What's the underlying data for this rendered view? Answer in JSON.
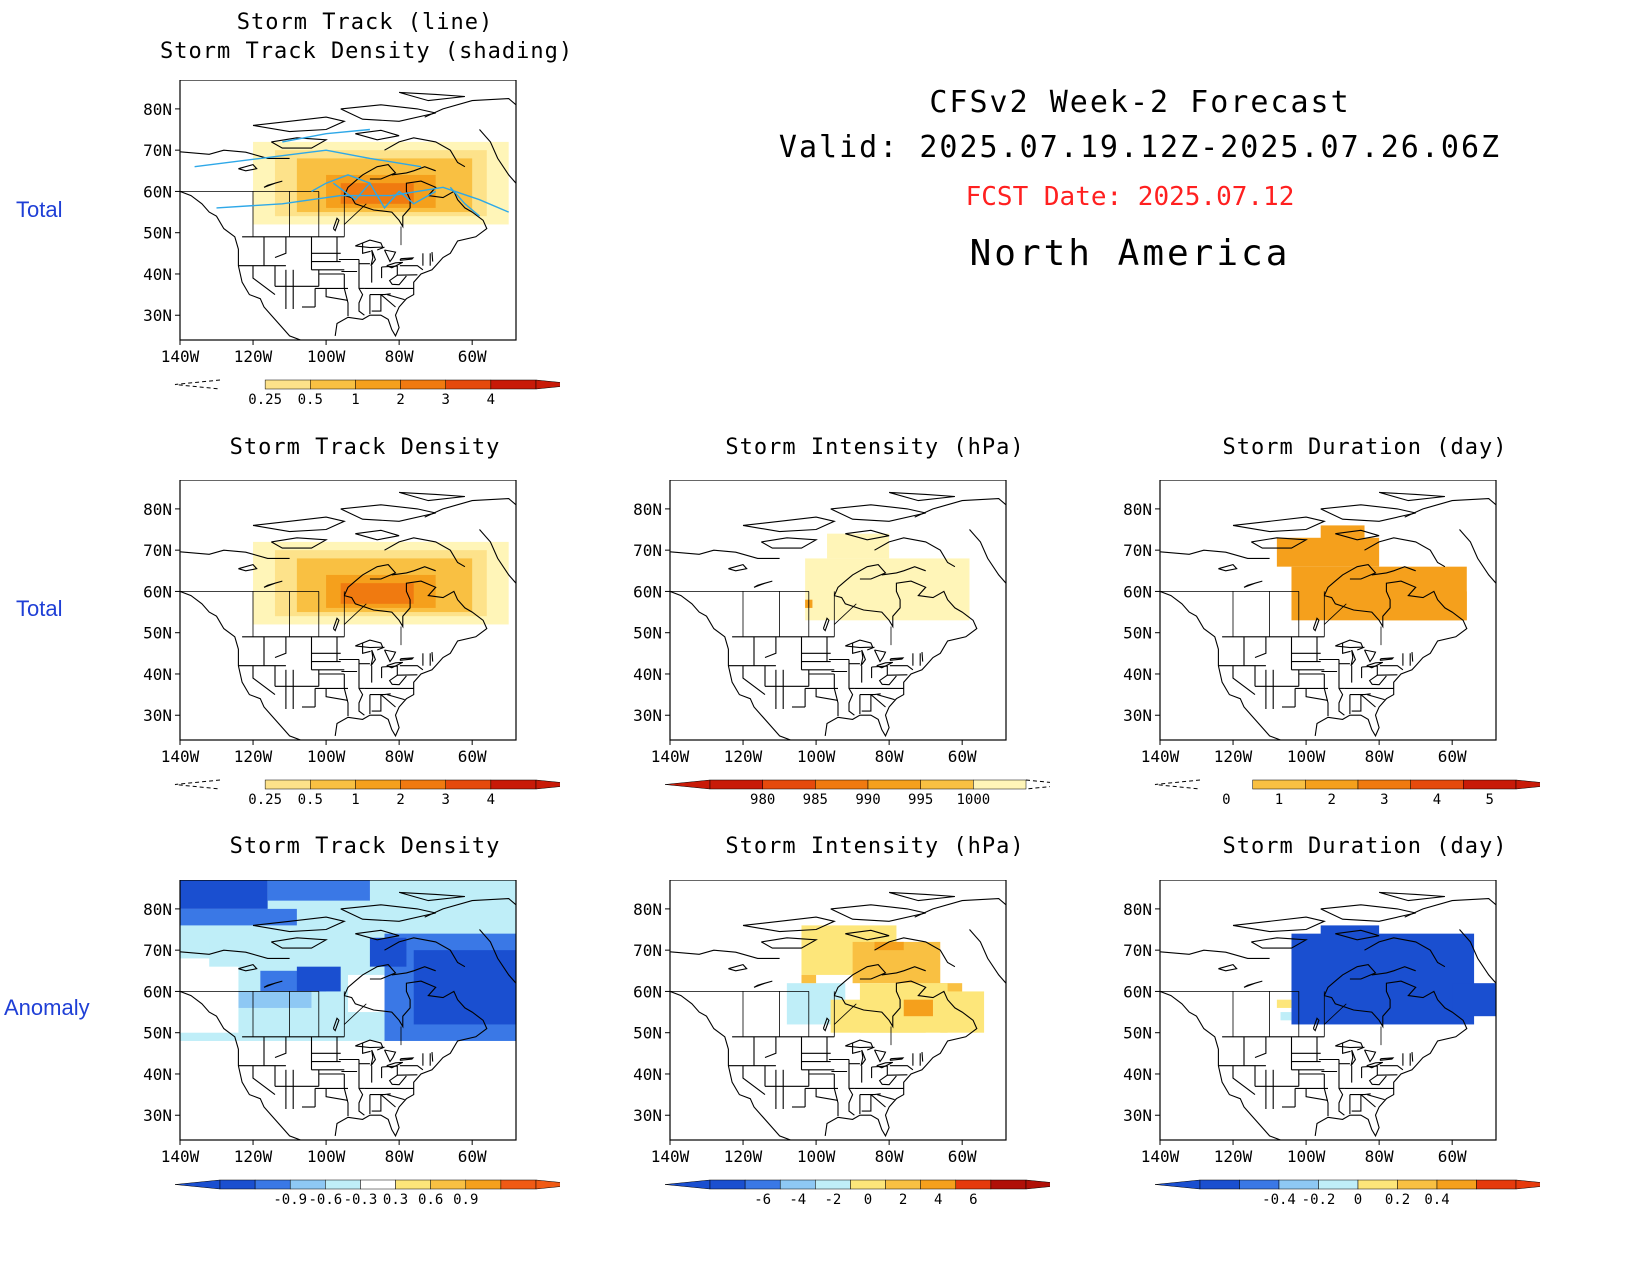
{
  "header": {
    "line1": "CFSv2 Week-2 Forecast",
    "line2": "Valid: 2025.07.19.12Z-2025.07.26.06Z",
    "fcst_date": "FCST Date: 2025.07.12",
    "region": "North America"
  },
  "row_labels": [
    "Total",
    "Total",
    "Anomaly"
  ],
  "axes": {
    "lat_ticks": [
      "80N",
      "70N",
      "60N",
      "50N",
      "40N",
      "30N"
    ],
    "lon_ticks": [
      "140W",
      "120W",
      "100W",
      "80W",
      "60W"
    ]
  },
  "panels": [
    {
      "id": "p0",
      "title": [
        "Storm Track (line)",
        "Storm Track Density (shading)"
      ],
      "field": "density",
      "colorbar": {
        "labels": [
          "0.25",
          "0.5",
          "1",
          "2",
          "3",
          "4"
        ],
        "colors": [
          "#fff5b8",
          "#fde28a",
          "#f9c042",
          "#f5a01c",
          "#f07a10",
          "#e64a0c",
          "#c81a08"
        ],
        "dashed_left": true,
        "dashed_right": false
      }
    },
    {
      "id": "p1",
      "title": [
        "Storm Track Density"
      ],
      "field": "density",
      "colorbar": {
        "labels": [
          "0.25",
          "0.5",
          "1",
          "2",
          "3",
          "4"
        ],
        "colors": [
          "#fff5b8",
          "#fde28a",
          "#f9c042",
          "#f5a01c",
          "#f07a10",
          "#e64a0c",
          "#c81a08"
        ],
        "dashed_left": true,
        "dashed_right": false
      }
    },
    {
      "id": "p2",
      "title": [
        "Storm Intensity (hPa)"
      ],
      "field": "intensity",
      "colorbar": {
        "labels": [
          "980",
          "985",
          "990",
          "995",
          "1000"
        ],
        "colors": [
          "#c81a08",
          "#e64a0c",
          "#f07a10",
          "#f5a01c",
          "#f9c042",
          "#fff5b8"
        ],
        "dashed_left": false,
        "dashed_right": true
      }
    },
    {
      "id": "p3",
      "title": [
        "Storm Duration (day)"
      ],
      "field": "duration",
      "colorbar": {
        "labels": [
          "0",
          "1",
          "2",
          "3",
          "4",
          "5"
        ],
        "colors": [
          "#fff5b8",
          "#f9c042",
          "#f5a01c",
          "#f07a10",
          "#e64a0c",
          "#c81a08"
        ],
        "dashed_left": true,
        "dashed_right": false
      }
    },
    {
      "id": "p4",
      "title": [
        "Storm Track Density"
      ],
      "field": "density_anom",
      "colorbar": {
        "labels": [
          "-0.9",
          "-0.6",
          "-0.3",
          "0.3",
          "0.6",
          "0.9"
        ],
        "colors": [
          "#1a4fd0",
          "#3a78e6",
          "#8ec8f4",
          "#bfeef8",
          "#ffffff",
          "#fde67a",
          "#f9c042",
          "#f5a01c",
          "#f05a14"
        ],
        "dashed_left": false,
        "dashed_right": false
      }
    },
    {
      "id": "p5",
      "title": [
        "Storm Intensity (hPa)"
      ],
      "field": "intensity_anom",
      "colorbar": {
        "labels": [
          "-6",
          "-4",
          "-2",
          "0",
          "2",
          "4",
          "6"
        ],
        "colors": [
          "#1a4fd0",
          "#3a78e6",
          "#8ec8f4",
          "#bfeef8",
          "#fde67a",
          "#f9c042",
          "#f5a01c",
          "#e63a0c",
          "#b01008"
        ],
        "dashed_left": false,
        "dashed_right": false
      }
    },
    {
      "id": "p6",
      "title": [
        "Storm Duration (day)"
      ],
      "field": "duration_anom",
      "colorbar": {
        "labels": [
          "-0.4",
          "-0.2",
          "0",
          "0.2",
          "0.4"
        ],
        "colors": [
          "#1a4fd0",
          "#3a78e6",
          "#8ec8f4",
          "#bfeef8",
          "#fde67a",
          "#f9c042",
          "#f5a01c",
          "#e63a0c"
        ],
        "dashed_left": false,
        "dashed_right": false
      }
    }
  ]
}
